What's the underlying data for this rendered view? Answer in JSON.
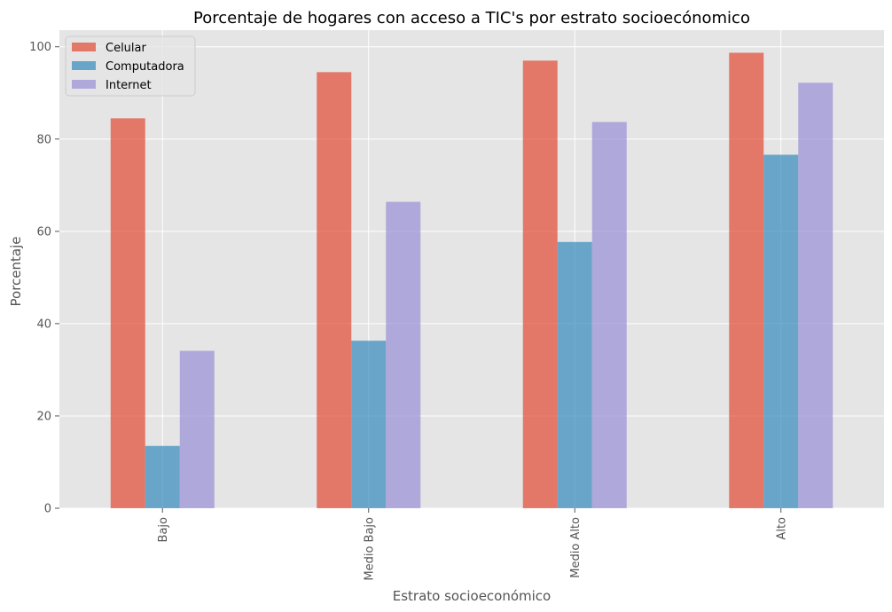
{
  "chart_data": {
    "type": "bar",
    "title": "Porcentaje de hogares con acceso a TIC's por estrato socioecónomico",
    "xlabel": "Estrato socioeconómico",
    "ylabel": "Porcentaje",
    "categories": [
      "Bajo",
      "Medio Bajo",
      "Medio Alto",
      "Alto"
    ],
    "series": [
      {
        "name": "Celular",
        "values": [
          84.5,
          94.5,
          97.0,
          98.7
        ],
        "color": "#e24a33"
      },
      {
        "name": "Computadora",
        "values": [
          13.5,
          36.3,
          57.7,
          76.6
        ],
        "color": "#348abd"
      },
      {
        "name": "Internet",
        "values": [
          34.1,
          66.4,
          83.7,
          92.2
        ],
        "color": "#988ed5"
      }
    ],
    "ylim": [
      0,
      103.6
    ],
    "yticks": [
      0,
      20,
      40,
      60,
      80,
      100
    ],
    "bar_opacity": 0.7,
    "grid": true,
    "legend_position": "top-left",
    "background": "#e5e5e5"
  }
}
